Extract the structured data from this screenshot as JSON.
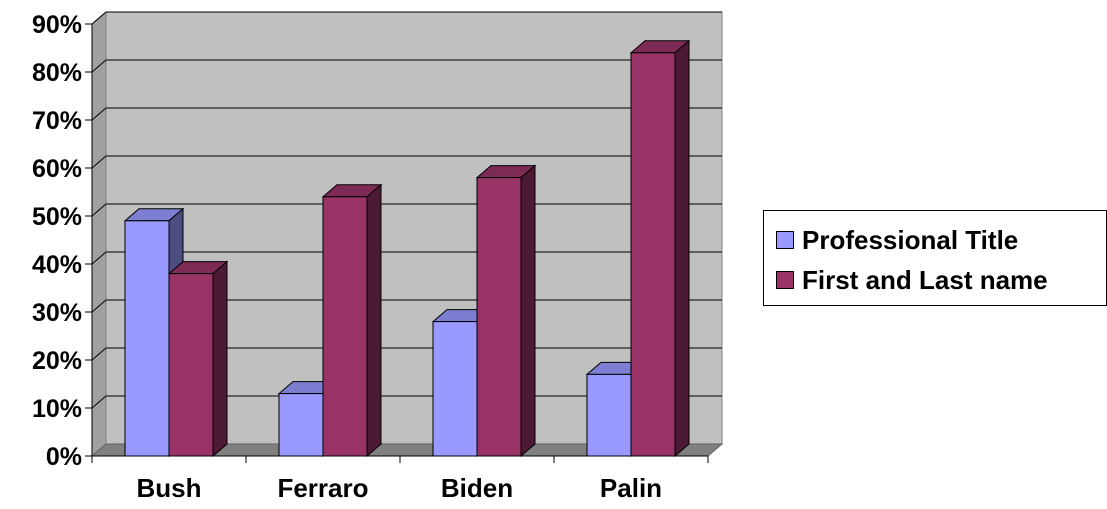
{
  "chart_data": {
    "type": "bar",
    "title": "",
    "xlabel": "",
    "ylabel": "",
    "categories": [
      "Bush",
      "Ferraro",
      "Biden",
      "Palin"
    ],
    "series": [
      {
        "name": "Professional Title",
        "values": [
          49,
          13,
          28,
          17
        ],
        "color": "#9999ff"
      },
      {
        "name": "First and Last name",
        "values": [
          38,
          54,
          58,
          84
        ],
        "color": "#993366"
      }
    ],
    "ylim": [
      0,
      90
    ],
    "yticks": [
      "0%",
      "10%",
      "20%",
      "30%",
      "40%",
      "50%",
      "60%",
      "70%",
      "80%",
      "90%"
    ],
    "grid": true,
    "legend_position": "right",
    "plot_background": "#c0c0c0",
    "three_d": true
  }
}
